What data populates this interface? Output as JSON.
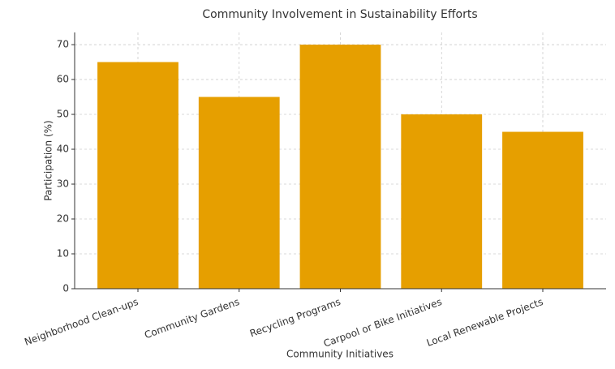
{
  "chart_data": {
    "type": "bar",
    "title": "Community Involvement in Sustainability Efforts",
    "x_label": "Community Initiatives",
    "y_label": "Participation (%)",
    "categories": [
      "Neighborhood Clean-ups",
      "Community Gardens",
      "Recycling Programs",
      "Carpool or Bike Initiatives",
      "Local Renewable Projects"
    ],
    "values": [
      65,
      55,
      70,
      50,
      45
    ],
    "color": "#e69f00",
    "ylim": [
      0,
      73.5
    ],
    "yticks": [
      0,
      10,
      20,
      30,
      40,
      50,
      60,
      70
    ],
    "grid": true
  }
}
